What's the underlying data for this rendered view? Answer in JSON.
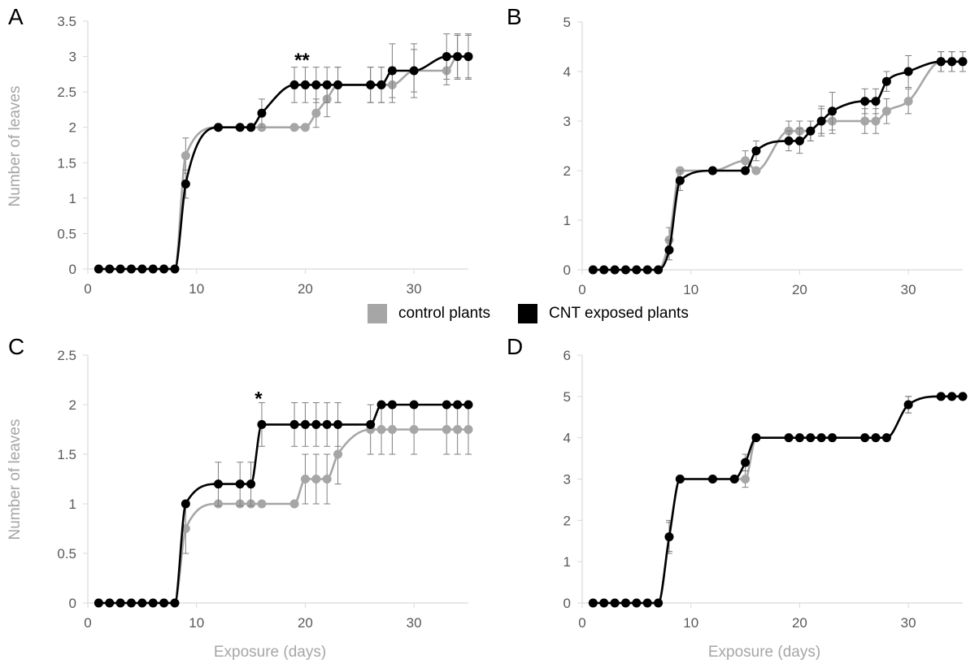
{
  "legend": {
    "control": {
      "label": "control plants",
      "color": "#a6a6a6"
    },
    "cnt": {
      "label": "CNT exposed plants",
      "color": "#000000"
    }
  },
  "chart_data": [
    {
      "panel": "A",
      "type": "line",
      "ylabel": "Number of leaves",
      "xlabel": "",
      "xlim": [
        0,
        35
      ],
      "ylim": [
        0,
        3.5
      ],
      "xticks": [
        0,
        10,
        20,
        30
      ],
      "yticks": [
        "0",
        "0.5",
        "1",
        "1.5",
        "2",
        "2.5",
        "3",
        "3.5"
      ],
      "annotations": [
        {
          "text": "**",
          "x": 20,
          "y": 2.95
        }
      ],
      "series": [
        {
          "name": "control plants",
          "color": "#a6a6a6",
          "x": [
            1,
            2,
            3,
            4,
            5,
            6,
            7,
            8,
            9,
            12,
            14,
            15,
            16,
            19,
            20,
            21,
            22,
            23,
            26,
            27,
            28,
            30,
            33,
            34,
            35
          ],
          "y": [
            0,
            0,
            0,
            0,
            0,
            0,
            0,
            0,
            1.6,
            2,
            2,
            2,
            2,
            2,
            2,
            2.2,
            2.4,
            2.6,
            2.6,
            2.6,
            2.6,
            2.8,
            2.8,
            3,
            3
          ],
          "err": [
            0,
            0,
            0,
            0,
            0,
            0,
            0,
            0,
            0.25,
            0,
            0,
            0,
            0,
            0,
            0,
            0.2,
            0.25,
            0.25,
            0.25,
            0.25,
            0.25,
            0.3,
            0.2,
            0.3,
            0.3
          ]
        },
        {
          "name": "CNT exposed plants",
          "color": "#000000",
          "x": [
            1,
            2,
            3,
            4,
            5,
            6,
            7,
            8,
            9,
            12,
            14,
            15,
            16,
            19,
            20,
            21,
            22,
            23,
            26,
            27,
            28,
            30,
            33,
            34,
            35
          ],
          "y": [
            0,
            0,
            0,
            0,
            0,
            0,
            0,
            0,
            1.2,
            2,
            2,
            2,
            2.2,
            2.6,
            2.6,
            2.6,
            2.6,
            2.6,
            2.6,
            2.6,
            2.8,
            2.8,
            3,
            3,
            3
          ],
          "err": [
            0,
            0,
            0,
            0,
            0,
            0,
            0,
            0,
            0.2,
            0,
            0,
            0,
            0.2,
            0.25,
            0.25,
            0.25,
            0.25,
            0.25,
            0.25,
            0.25,
            0.38,
            0.38,
            0.32,
            0.32,
            0.32
          ]
        }
      ]
    },
    {
      "panel": "B",
      "type": "line",
      "ylabel": "",
      "xlabel": "",
      "xlim": [
        0,
        35
      ],
      "ylim": [
        0,
        5
      ],
      "xticks": [
        0,
        10,
        20,
        30
      ],
      "yticks": [
        "0",
        "1",
        "2",
        "3",
        "4",
        "5"
      ],
      "annotations": [],
      "series": [
        {
          "name": "control plants",
          "color": "#a6a6a6",
          "x": [
            1,
            2,
            3,
            4,
            5,
            6,
            7,
            8,
            9,
            12,
            15,
            16,
            19,
            20,
            21,
            22,
            23,
            26,
            27,
            28,
            30,
            33,
            34,
            35
          ],
          "y": [
            0,
            0,
            0,
            0,
            0,
            0,
            0,
            0.6,
            2,
            2,
            2.2,
            2,
            2.8,
            2.8,
            2.8,
            3,
            3,
            3,
            3,
            3.2,
            3.4,
            4.2,
            4.2,
            4.2
          ],
          "err": [
            0,
            0,
            0,
            0,
            0,
            0,
            0,
            0.25,
            0,
            0,
            0.2,
            0,
            0.2,
            0.2,
            0.2,
            0.25,
            0.25,
            0.25,
            0.25,
            0.25,
            0.25,
            0.2,
            0.2,
            0.2
          ]
        },
        {
          "name": "CNT exposed plants",
          "color": "#000000",
          "x": [
            1,
            2,
            3,
            4,
            5,
            6,
            7,
            8,
            9,
            12,
            15,
            16,
            19,
            20,
            21,
            22,
            23,
            26,
            27,
            28,
            30,
            33,
            34,
            35
          ],
          "y": [
            0,
            0,
            0,
            0,
            0,
            0,
            0,
            0.4,
            1.8,
            2,
            2,
            2.4,
            2.6,
            2.6,
            2.8,
            3,
            3.2,
            3.4,
            3.4,
            3.8,
            4,
            4.2,
            4.2,
            4.2
          ],
          "err": [
            0,
            0,
            0,
            0,
            0,
            0,
            0,
            0.2,
            0.2,
            0,
            0,
            0.2,
            0.2,
            0.25,
            0.2,
            0.3,
            0.38,
            0.25,
            0.25,
            0.2,
            0.32,
            0.2,
            0.2,
            0.2
          ]
        }
      ]
    },
    {
      "panel": "C",
      "type": "line",
      "ylabel": "Number of leaves",
      "xlabel": "Exposure (days)",
      "xlim": [
        0,
        35
      ],
      "ylim": [
        0,
        2.5
      ],
      "xticks": [
        0,
        10,
        20,
        30
      ],
      "yticks": [
        "0",
        "0.5",
        "1",
        "1.5",
        "2",
        "2.5"
      ],
      "annotations": [
        {
          "text": "*",
          "x": 16,
          "y": 2.06
        }
      ],
      "series": [
        {
          "name": "control plants",
          "color": "#a6a6a6",
          "x": [
            1,
            2,
            3,
            4,
            5,
            6,
            7,
            8,
            9,
            12,
            14,
            15,
            16,
            19,
            20,
            21,
            22,
            23,
            26,
            27,
            28,
            30,
            33,
            34,
            35
          ],
          "y": [
            0,
            0,
            0,
            0,
            0,
            0,
            0,
            0,
            0.75,
            1,
            1,
            1,
            1,
            1,
            1.25,
            1.25,
            1.25,
            1.5,
            1.75,
            1.75,
            1.75,
            1.75,
            1.75,
            1.75,
            1.75
          ],
          "err": [
            0,
            0,
            0,
            0,
            0,
            0,
            0,
            0,
            0.25,
            0,
            0,
            0,
            0,
            0,
            0.25,
            0.25,
            0.25,
            0.3,
            0.25,
            0.25,
            0.25,
            0.25,
            0.25,
            0.25,
            0.25
          ]
        },
        {
          "name": "CNT exposed plants",
          "color": "#000000",
          "x": [
            1,
            2,
            3,
            4,
            5,
            6,
            7,
            8,
            9,
            12,
            14,
            15,
            16,
            19,
            20,
            21,
            22,
            23,
            26,
            27,
            28,
            30,
            33,
            34,
            35
          ],
          "y": [
            0,
            0,
            0,
            0,
            0,
            0,
            0,
            0,
            1,
            1.2,
            1.2,
            1.2,
            1.8,
            1.8,
            1.8,
            1.8,
            1.8,
            1.8,
            1.8,
            2,
            2,
            2,
            2,
            2,
            2
          ],
          "err": [
            0,
            0,
            0,
            0,
            0,
            0,
            0,
            0,
            0,
            0.22,
            0.22,
            0.22,
            0.22,
            0.22,
            0.22,
            0.22,
            0.22,
            0.22,
            0,
            0,
            0,
            0,
            0,
            0,
            0
          ]
        }
      ]
    },
    {
      "panel": "D",
      "type": "line",
      "ylabel": "",
      "xlabel": "Exposure (days)",
      "xlim": [
        0,
        35
      ],
      "ylim": [
        0,
        6
      ],
      "xticks": [
        0,
        10,
        20,
        30
      ],
      "yticks": [
        "0",
        "1",
        "2",
        "3",
        "4",
        "5",
        "6"
      ],
      "annotations": [],
      "series": [
        {
          "name": "control plants",
          "color": "#a6a6a6",
          "x": [
            1,
            2,
            3,
            4,
            5,
            6,
            7,
            8,
            9,
            12,
            14,
            15,
            16,
            19,
            20,
            21,
            22,
            23,
            26,
            27,
            28,
            30,
            33,
            34,
            35
          ],
          "y": [
            0,
            0,
            0,
            0,
            0,
            0,
            0,
            1.6,
            3,
            3,
            3,
            3,
            4,
            4,
            4,
            4,
            4,
            4,
            4,
            4,
            4,
            4.8,
            5,
            5,
            5
          ],
          "err": [
            0,
            0,
            0,
            0,
            0,
            0,
            0,
            0.4,
            0,
            0,
            0,
            0.2,
            0,
            0,
            0,
            0,
            0,
            0,
            0,
            0,
            0,
            0.2,
            0,
            0,
            0
          ]
        },
        {
          "name": "CNT exposed plants",
          "color": "#000000",
          "x": [
            1,
            2,
            3,
            4,
            5,
            6,
            7,
            8,
            9,
            12,
            14,
            15,
            16,
            19,
            20,
            21,
            22,
            23,
            26,
            27,
            28,
            30,
            33,
            34,
            35
          ],
          "y": [
            0,
            0,
            0,
            0,
            0,
            0,
            0,
            1.6,
            3,
            3,
            3,
            3.4,
            4,
            4,
            4,
            4,
            4,
            4,
            4,
            4,
            4,
            4.8,
            5,
            5,
            5
          ],
          "err": [
            0,
            0,
            0,
            0,
            0,
            0,
            0,
            0.35,
            0,
            0,
            0,
            0.2,
            0,
            0,
            0,
            0,
            0,
            0,
            0,
            0,
            0,
            0.2,
            0,
            0,
            0
          ]
        }
      ]
    }
  ]
}
